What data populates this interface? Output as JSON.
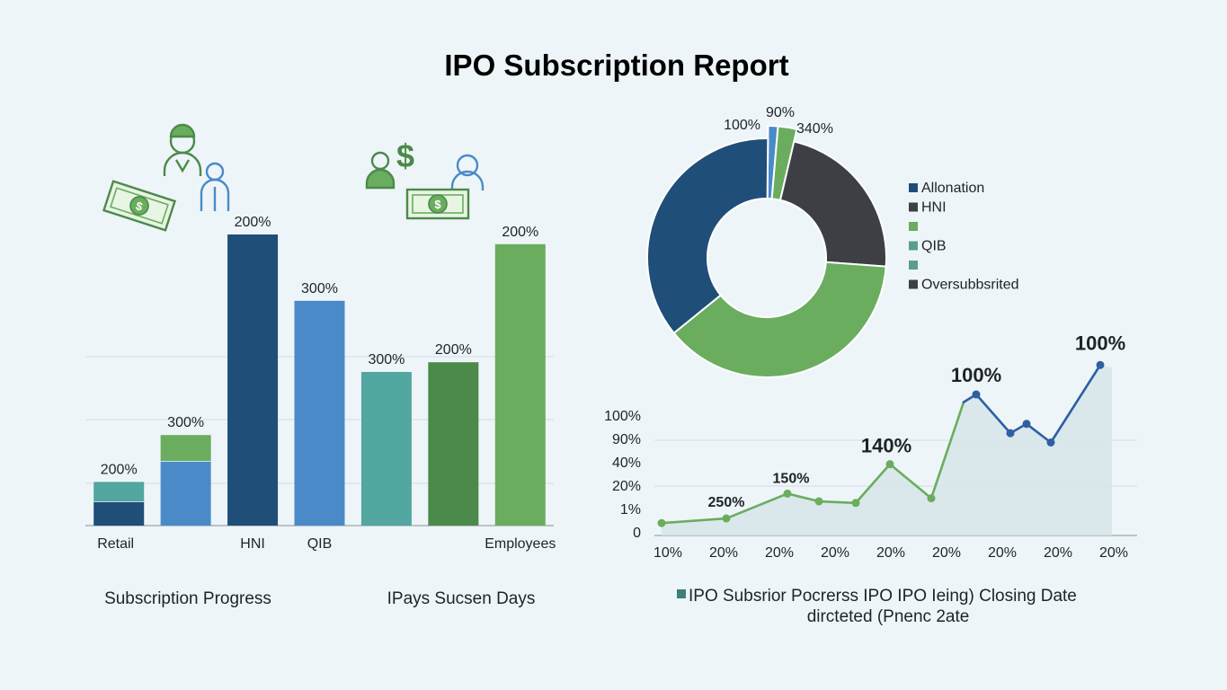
{
  "page": {
    "title": "IPO Subscription Report",
    "caption_left": "Subscription Progress",
    "caption_middle": "IPays Sucsen Days",
    "caption_right_line1": "IPO Subsrior Pocrerss IPO IPO Ieing) Closing Date",
    "caption_right_line2": "dircteted (Pnenc 2ate"
  },
  "icons": [
    "user-icon",
    "money-icon",
    "dollar-icon"
  ],
  "colors": {
    "navy": "#1f4e79",
    "blue": "#4a8ac8",
    "teal": "#52a7a0",
    "green": "#6aad5e",
    "dark_green": "#4b8a4a",
    "charcoal": "#3d3f44",
    "area": "#d6e5ea",
    "line_blue": "#2e5fa3"
  },
  "chart_data": [
    {
      "type": "bar",
      "title": "",
      "categories": [
        "Retail",
        "",
        "HNI",
        "QIB",
        "",
        "",
        "Employees"
      ],
      "bars": [
        {
          "value_label": "200%",
          "segments": [
            {
              "value": 15,
              "color": "#1f4e79"
            },
            {
              "value": 12,
              "color": "#52a7a0"
            }
          ]
        },
        {
          "value_label": "300%",
          "segments": [
            {
              "value": 40,
              "color": "#4a8ac8"
            },
            {
              "value": 16,
              "color": "#6aad5e"
            }
          ]
        },
        {
          "value_label": "200%",
          "segments": [
            {
              "value": 180,
              "color": "#1f4e79"
            }
          ]
        },
        {
          "value_label": "300%",
          "segments": [
            {
              "value": 139,
              "color": "#4a8ac8"
            }
          ]
        },
        {
          "value_label": "300%",
          "segments": [
            {
              "value": 95,
              "color": "#52a7a0"
            }
          ]
        },
        {
          "value_label": "200%",
          "segments": [
            {
              "value": 101,
              "color": "#4b8a4a"
            }
          ]
        },
        {
          "value_label": "200%",
          "segments": [
            {
              "value": 174,
              "color": "#6aad5e"
            }
          ]
        }
      ],
      "ylim": [
        0,
        200
      ],
      "grid": true
    },
    {
      "type": "pie",
      "donut": true,
      "slices": [
        {
          "value": 36,
          "color": "#1f4e79",
          "label": "100%"
        },
        {
          "value": 1.2,
          "color": "#4a8ac8",
          "label": "90%"
        },
        {
          "value": 2.3,
          "color": "#6aad5e",
          "label": "340%"
        },
        {
          "value": 22.5,
          "color": "#3d3f44",
          "label": ""
        },
        {
          "value": 38,
          "color": "#6aad5e",
          "label": ""
        }
      ],
      "legend": [
        {
          "label": "Allonation",
          "color": "#1f4e79"
        },
        {
          "label": "HNI",
          "color": "#3d3f44"
        },
        {
          "label": "",
          "color": "#6aad5e"
        },
        {
          "label": "QIB",
          "color": "#5a9e8c"
        },
        {
          "label": "",
          "color": "#5a9e8c"
        },
        {
          "label": "Oversubbsrited",
          "color": "#3d3f44"
        }
      ],
      "legend_position": "right"
    },
    {
      "type": "line",
      "y_tick_labels": [
        "0",
        "1%",
        "20%",
        "40%",
        "90%",
        "100%"
      ],
      "x_tick_labels": [
        "10%",
        "20%",
        "20%",
        "20%",
        "20%",
        "20%",
        "20%",
        "20%",
        "20%"
      ],
      "series": [
        {
          "values": [
            0.4,
            0.55,
            1.35,
            1.1,
            1.05,
            2.3,
            1.2,
            4.3,
            4.55,
            3.3,
            3.6,
            3.0,
            5.5
          ],
          "colors": [
            "#6aad5e",
            "#6aad5e",
            "#6aad5e",
            "#6aad5e",
            "#6aad5e",
            "#6aad5e",
            "#6aad5e",
            "#6aad5e",
            "#2e5fa3",
            "#2e5fa3",
            "#2e5fa3",
            "#2e5fa3",
            "#2e5fa3"
          ],
          "markers": [
            true,
            true,
            true,
            true,
            true,
            true,
            true,
            false,
            true,
            true,
            true,
            true,
            true
          ]
        }
      ],
      "annotations": [
        {
          "text": "250%",
          "point": 1
        },
        {
          "text": "150%",
          "point": 2
        },
        {
          "text": "140%",
          "point": 5
        },
        {
          "text": "100%",
          "point": 8
        },
        {
          "text": "100%",
          "point": 12
        }
      ],
      "legend": {
        "label": "IPO Subsrior Pocrerss IPO IPO Ieing) Closing Date",
        "color": "#3d7f7a"
      },
      "area_fill": true,
      "grid": true
    }
  ]
}
